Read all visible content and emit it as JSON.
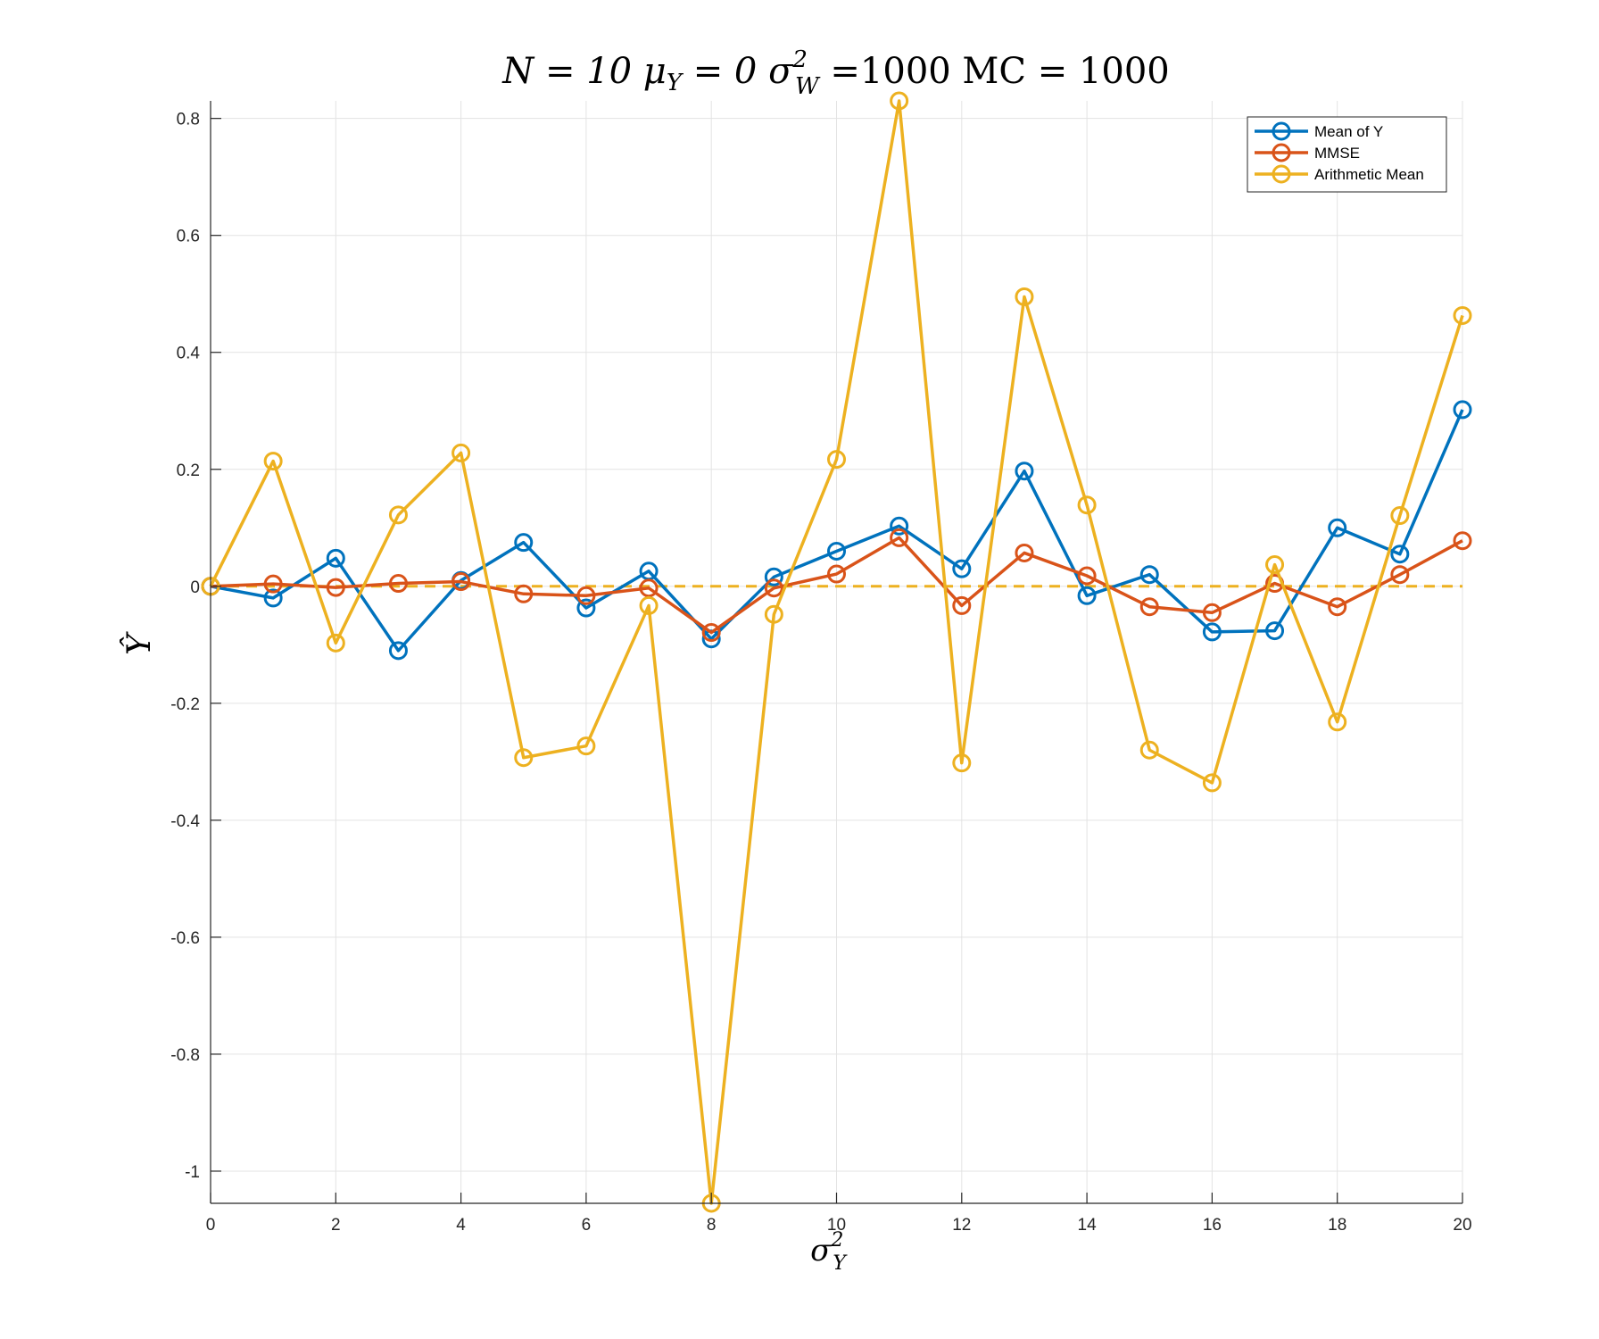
{
  "chart_data": {
    "type": "line",
    "title": {
      "part1": "N = 10 μ",
      "sub1": "Y",
      "part2": " = 0 σ",
      "sup2": "2",
      "sub2": "W",
      "part3": " =1000 MC = 1000"
    },
    "xlabel": {
      "base": "σ",
      "sup": "2",
      "sub": "Y"
    },
    "ylabel": {
      "base": "Ŷ"
    },
    "xlim": [
      0,
      20
    ],
    "ylim": [
      -1.055,
      0.83
    ],
    "xticks": [
      0,
      2,
      4,
      6,
      8,
      10,
      12,
      14,
      16,
      18,
      20
    ],
    "xtick_labels": [
      "0",
      "2",
      "4",
      "6",
      "8",
      "10",
      "12",
      "14",
      "16",
      "18",
      "20"
    ],
    "yticks": [
      -1,
      -0.8,
      -0.6,
      -0.4,
      -0.2,
      0,
      0.2,
      0.4,
      0.6,
      0.8
    ],
    "ytick_labels": [
      "-1",
      "-0.8",
      "-0.6",
      "-0.4",
      "-0.2",
      "0",
      "0.2",
      "0.4",
      "0.6",
      "0.8"
    ],
    "grid": true,
    "legend_position": "top-right",
    "x": [
      0,
      1,
      2,
      3,
      4,
      5,
      6,
      7,
      8,
      9,
      10,
      11,
      12,
      13,
      14,
      15,
      16,
      17,
      18,
      19,
      20
    ],
    "series": [
      {
        "name": "Mean of Y",
        "color": "#0072BD",
        "values": [
          0,
          -0.02,
          0.048,
          -0.11,
          0.01,
          0.075,
          -0.037,
          0.026,
          -0.09,
          0.016,
          0.06,
          0.103,
          0.03,
          0.197,
          -0.016,
          0.02,
          -0.078,
          -0.076,
          0.1,
          0.055,
          0.302
        ]
      },
      {
        "name": "MMSE",
        "color": "#D95319",
        "values": [
          0,
          0.004,
          -0.002,
          0.005,
          0.008,
          -0.013,
          -0.016,
          -0.003,
          -0.079,
          -0.003,
          0.021,
          0.083,
          -0.033,
          0.057,
          0.018,
          -0.035,
          -0.045,
          0.005,
          -0.035,
          0.02,
          0.078
        ]
      },
      {
        "name": "Arithmetic Mean",
        "color": "#EDB120",
        "values": [
          0,
          0.214,
          -0.097,
          0.122,
          0.228,
          -0.293,
          -0.273,
          -0.033,
          -1.055,
          -0.048,
          0.217,
          0.83,
          -0.302,
          0.495,
          0.139,
          -0.28,
          -0.336,
          0.037,
          -0.232,
          0.121,
          0.463
        ]
      }
    ],
    "reference_line": {
      "y": 0,
      "color": "#EDB120",
      "style": "dashed"
    }
  }
}
